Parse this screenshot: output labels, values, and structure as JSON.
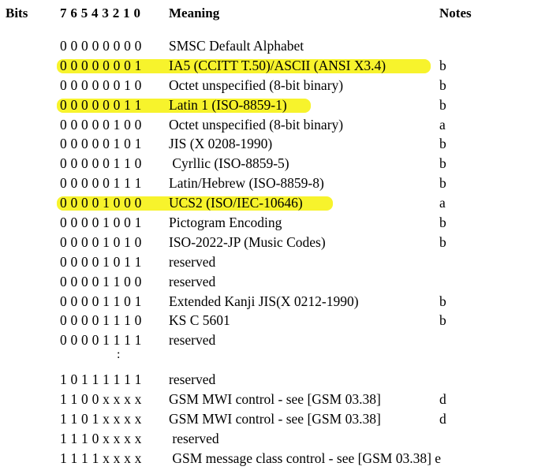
{
  "header": {
    "bits": "Bits",
    "bit_numbers": "7 6 5 4 3 2 1 0",
    "meaning": "Meaning",
    "notes": "Notes"
  },
  "rows": [
    {
      "bits": "0 0 0 0 0 0 0 0",
      "meaning": "SMSC Default Alphabet",
      "note": "",
      "highlight": false
    },
    {
      "bits": "0 0 0 0 0 0 0 1",
      "meaning": "IA5 (CCITT T.50)/ASCII (ANSI X3.4)",
      "note": "b",
      "highlight": true
    },
    {
      "bits": "0 0 0 0 0 0 1 0",
      "meaning": "Octet unspecified (8-bit binary)",
      "note": "b",
      "highlight": false
    },
    {
      "bits": "0 0 0 0 0 0 1 1",
      "meaning": "Latin 1 (ISO-8859-1)",
      "note": "b",
      "highlight": true
    },
    {
      "bits": "0 0 0 0 0 1 0 0",
      "meaning": "Octet unspecified (8-bit binary)",
      "note": "a",
      "highlight": false
    },
    {
      "bits": "0 0 0 0 0 1 0 1",
      "meaning": "JIS (X 0208-1990)",
      "note": "b",
      "highlight": false
    },
    {
      "bits": "0 0 0 0 0 1 1 0",
      "meaning": " Cyrllic (ISO-8859-5)",
      "note": "b",
      "highlight": false
    },
    {
      "bits": "0 0 0 0 0 1 1 1",
      "meaning": "Latin/Hebrew (ISO-8859-8)",
      "note": "b",
      "highlight": false
    },
    {
      "bits": "0 0 0 0 1 0 0 0",
      "meaning": "UCS2 (ISO/IEC-10646)",
      "note": "a",
      "highlight": true
    },
    {
      "bits": "0 0 0 0 1 0 0 1",
      "meaning": "Pictogram Encoding",
      "note": "b",
      "highlight": false
    },
    {
      "bits": "0 0 0 0 1 0 1 0",
      "meaning": "ISO-2022-JP (Music Codes)",
      "note": "b",
      "highlight": false
    },
    {
      "bits": "0 0 0 0 1 0 1 1",
      "meaning": "reserved",
      "note": "",
      "highlight": false
    },
    {
      "bits": "0 0 0 0 1 1 0 0",
      "meaning": "reserved",
      "note": "",
      "highlight": false
    },
    {
      "bits": "0 0 0 0 1 1 0 1",
      "meaning": "Extended Kanji JIS(X 0212-1990)",
      "note": "b",
      "highlight": false
    },
    {
      "bits": "0 0 0 0 1 1 1 0",
      "meaning": "KS C 5601",
      "note": "b",
      "highlight": false
    },
    {
      "bits": "0 0 0 0 1 1 1 1",
      "meaning": "reserved",
      "note": "",
      "highlight": false
    },
    {
      "bits": "",
      "meaning": "",
      "note": "",
      "highlight": false,
      "ellipsis": ":"
    },
    {
      "bits": "1 0 1 1 1 1 1 1",
      "meaning": "reserved",
      "note": "",
      "highlight": false
    },
    {
      "bits": "1 1 0 0 x x x x",
      "meaning": "GSM MWI control - see [GSM 03.38]",
      "note": "d",
      "highlight": false
    },
    {
      "bits": "1 1 0 1 x x x x",
      "meaning": "GSM MWI control - see [GSM 03.38]",
      "note": "d",
      "highlight": false
    },
    {
      "bits": "1 1 1 0 x x x x",
      "meaning": " reserved",
      "note": "",
      "highlight": false
    },
    {
      "bits": "1 1 1 1 x x x x",
      "meaning": " GSM message class control - see [GSM 03.38] e",
      "note": "",
      "highlight": false
    }
  ],
  "colors": {
    "highlight": "#f7f32c",
    "text": "#000000",
    "background": "#ffffff"
  }
}
